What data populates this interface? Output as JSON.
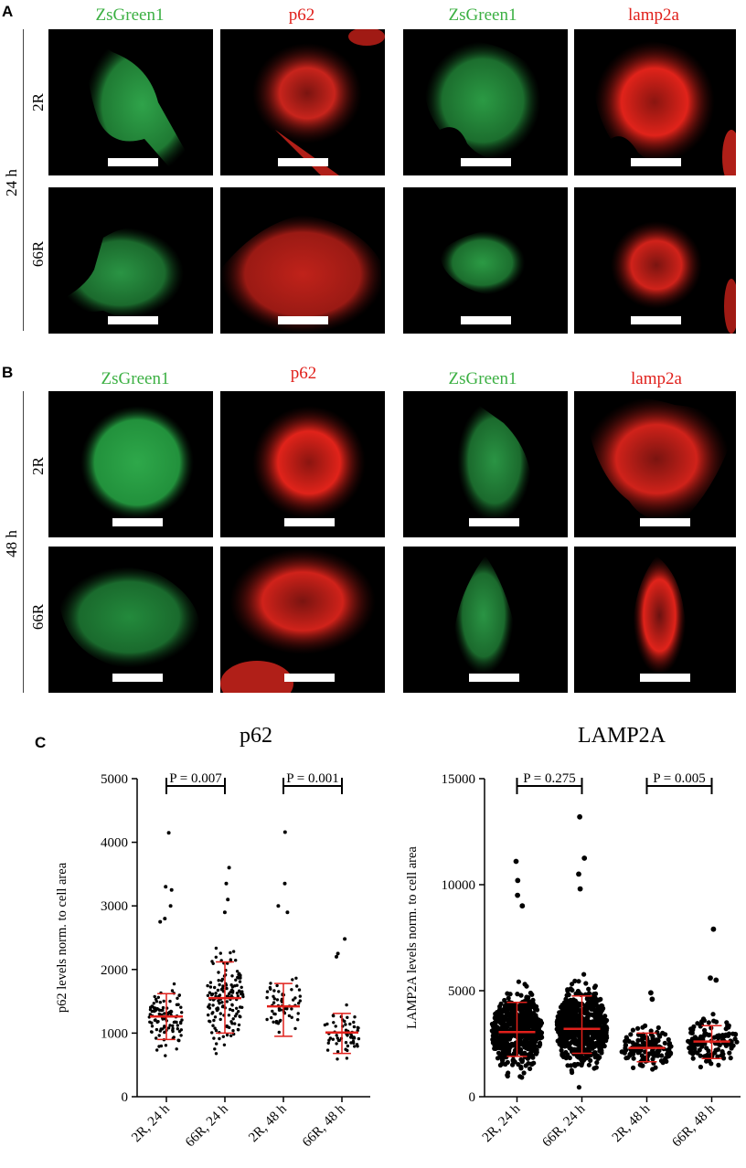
{
  "panels": {
    "A": {
      "letter": "A",
      "time": "24 h",
      "rows": [
        "2R",
        "66R"
      ],
      "cols": [
        "ZsGreen1",
        "p62",
        "ZsGreen1",
        "lamp2a"
      ]
    },
    "B": {
      "letter": "B",
      "time": "48 h",
      "rows": [
        "2R",
        "66R"
      ],
      "cols": [
        "ZsGreen1",
        "p62",
        "ZsGreen1",
        "lamp2a"
      ]
    },
    "C": {
      "letter": "C"
    }
  },
  "colors": {
    "green": "#3cb043",
    "red": "#e0201b",
    "mean_bar": "#e0201b",
    "point": "#000000"
  },
  "chart_data": [
    {
      "type": "scatter",
      "title": "p62",
      "ylabel": "p62 levels norm. to cell area",
      "xlabel": "",
      "categories": [
        "2R, 24 h",
        "66R, 24 h",
        "2R, 48 h",
        "66R, 48 h"
      ],
      "ylim": [
        0,
        5000
      ],
      "yticks": [
        0,
        1000,
        2000,
        3000,
        4000,
        5000
      ],
      "means": [
        1260,
        1550,
        1420,
        1010
      ],
      "sd_low": [
        900,
        1000,
        950,
        680
      ],
      "sd_high": [
        1620,
        2120,
        1780,
        1310
      ],
      "outliers": [
        [
          4150,
          3300,
          3250,
          3000,
          2800,
          2750
        ],
        [
          3600,
          3350,
          3100,
          2900
        ],
        [
          4160,
          3350,
          3000,
          2900
        ],
        [
          2480,
          2250,
          2200
        ]
      ],
      "comparisons": [
        {
          "groups": [
            0,
            1
          ],
          "label": "P = 0.007"
        },
        {
          "groups": [
            2,
            3
          ],
          "label": "P = 0.001"
        }
      ]
    },
    {
      "type": "scatter",
      "title": "LAMP2A",
      "ylabel": "LAMP2A levels norm. to cell area",
      "xlabel": "",
      "categories": [
        "2R, 24 h",
        "66R, 24 h",
        "2R, 48 h",
        "66R, 48 h"
      ],
      "ylim": [
        0,
        15000
      ],
      "yticks": [
        0,
        5000,
        10000,
        15000
      ],
      "means": [
        3050,
        3200,
        2300,
        2600
      ],
      "sd_low": [
        1900,
        2050,
        1650,
        1800
      ],
      "sd_high": [
        4450,
        4750,
        3000,
        3350
      ],
      "outliers": [
        [
          11100,
          10200,
          9500,
          9000
        ],
        [
          13200,
          11250,
          10500,
          9800
        ],
        [
          4900,
          4600
        ],
        [
          7900,
          5600,
          5500
        ]
      ],
      "comparisons": [
        {
          "groups": [
            0,
            1
          ],
          "label": "P = 0.275"
        },
        {
          "groups": [
            2,
            3
          ],
          "label": "P = 0.005"
        }
      ]
    }
  ]
}
